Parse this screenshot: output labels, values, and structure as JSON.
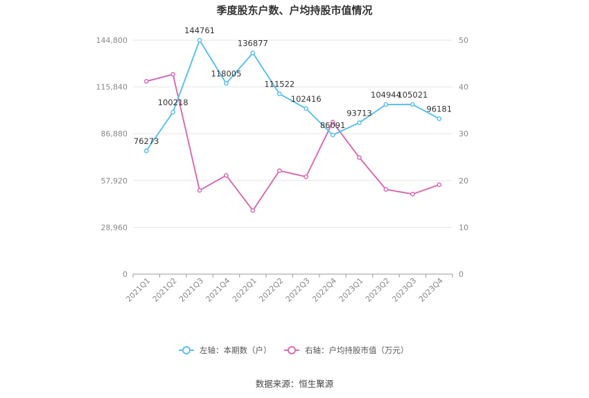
{
  "chart_data": {
    "type": "line",
    "title": "季度股东户数、户均持股市值情况",
    "categories": [
      "2021Q1",
      "2021Q2",
      "2021Q3",
      "2021Q4",
      "2022Q1",
      "2022Q2",
      "2022Q3",
      "2022Q4",
      "2023Q1",
      "2023Q2",
      "2023Q3",
      "2023Q4"
    ],
    "left_axis": {
      "ticks": [
        "0",
        "28,960",
        "57,920",
        "86,880",
        "115,840",
        "144,800"
      ],
      "min": 0,
      "max": 144800
    },
    "right_axis": {
      "ticks": [
        "0",
        "10",
        "20",
        "30",
        "40",
        "50"
      ],
      "min": 0,
      "max": 50
    },
    "series": [
      {
        "name": "左轴：本期数（户）",
        "axis": "left",
        "color": "#5bc0f0",
        "values": [
          76273,
          100218,
          144761,
          118005,
          136877,
          111522,
          102416,
          86091,
          93713,
          104944,
          105021,
          96181
        ],
        "labels": [
          "76273",
          "100218",
          "144761",
          "118005",
          "136877",
          "111522",
          "102416",
          "86091",
          "93713",
          "104944",
          "105021",
          "96181"
        ]
      },
      {
        "name": "右轴：户均持股市值（万元）",
        "axis": "right",
        "color": "#d86cb3",
        "values": [
          41.2,
          42.7,
          17.9,
          21.1,
          13.6,
          22.1,
          20.8,
          32.5,
          24.9,
          18.1,
          17.1,
          19.1
        ]
      }
    ],
    "grid": true,
    "legend_position": "bottom",
    "source": "数据来源：恒生聚源"
  }
}
